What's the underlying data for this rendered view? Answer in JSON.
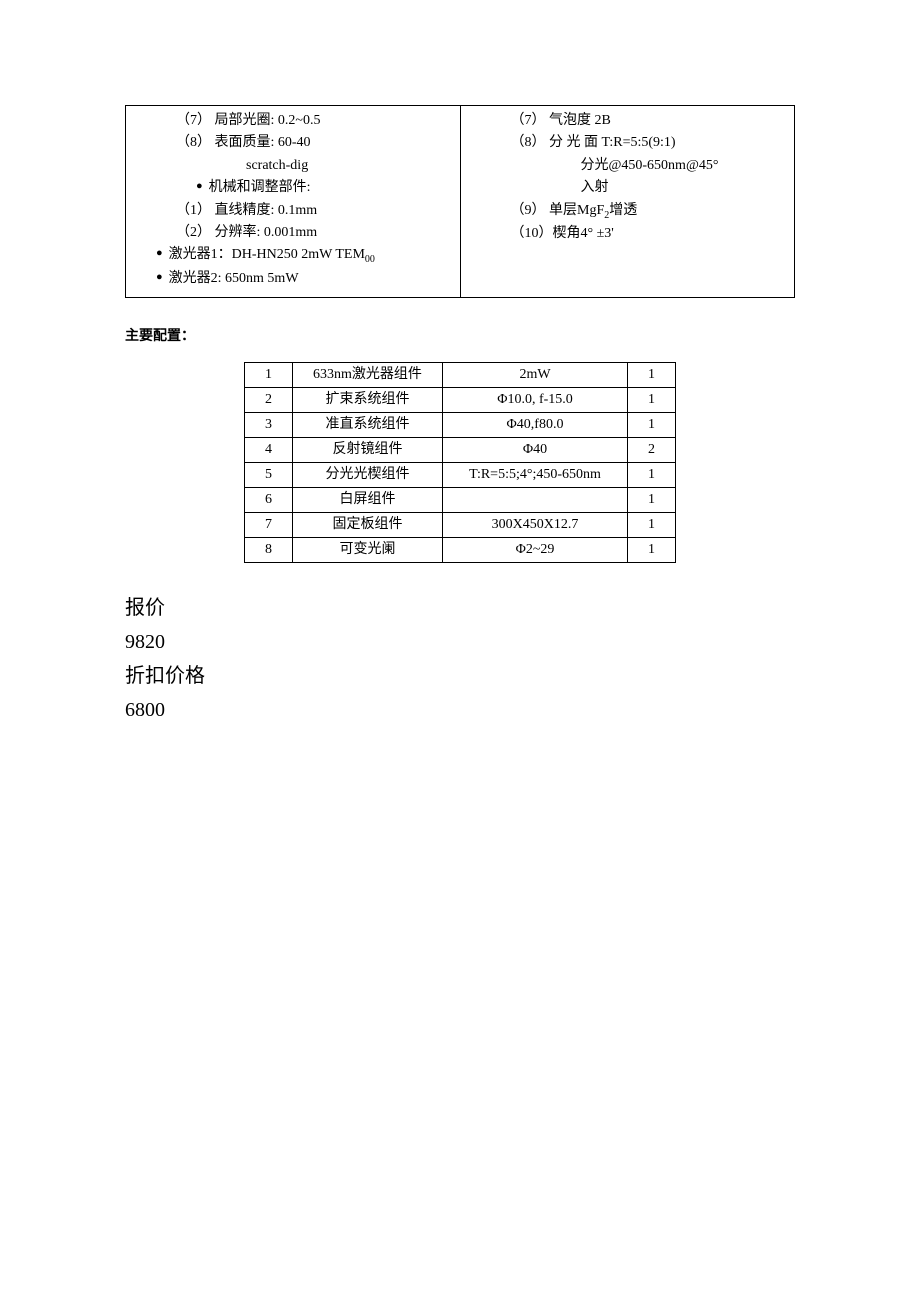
{
  "left_col": {
    "i7": "（7） 局部光圈: 0.2~0.5",
    "i8": "（8） 表面质量: 60-40",
    "i8b": "scratch-dig",
    "mech_header": "机械和调整部件:",
    "m1": "（1） 直线精度: 0.1mm",
    "m2": "（2） 分辨率: 0.001mm",
    "laser1": "激光器1：DH-HN250 2mW TEM",
    "laser1_sub": "00",
    "laser2": "激光器2: 650nm 5mW"
  },
  "right_col": {
    "i7": "（7） 气泡度 2B",
    "i8": "（8） 分 光 面 T:R=5:5(9:1)",
    "i8b": "分光@450-650nm@45°",
    "i8c": "入射",
    "i9_a": "（9） 单层MgF",
    "i9_sub": "2",
    "i9_b": "增透",
    "i10": "（10）楔角4° ±3'"
  },
  "config_title": "主要配置：",
  "config_table": {
    "columns": [
      "c1",
      "c2",
      "c3",
      "c4"
    ],
    "rows": [
      [
        "1",
        "633nm激光器组件",
        "2mW",
        "1"
      ],
      [
        "2",
        "扩束系统组件",
        "Φ10.0, f-15.0",
        "1"
      ],
      [
        "3",
        "准直系统组件",
        "Φ40,f80.0",
        "1"
      ],
      [
        "4",
        "反射镜组件",
        "Φ40",
        "2"
      ],
      [
        "5",
        "分光光楔组件",
        "T:R=5:5;4°;450-650nm",
        "1"
      ],
      [
        "6",
        "白屏组件",
        "",
        "1"
      ],
      [
        "7",
        "固定板组件",
        "300X450X12.7",
        "1"
      ],
      [
        "8",
        "可变光阑",
        "Φ2~29",
        "1"
      ]
    ]
  },
  "price": {
    "label1": "报价",
    "val1": "9820",
    "label2": "折扣价格",
    "val2": "6800"
  }
}
